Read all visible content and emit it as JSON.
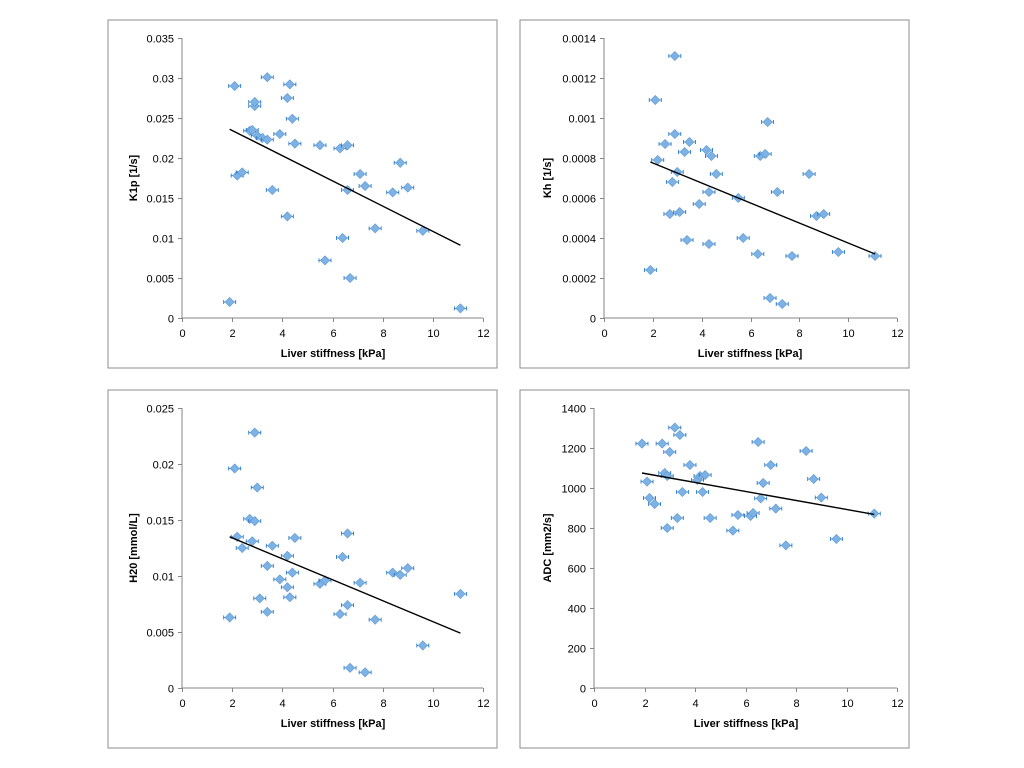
{
  "colors": {
    "marker": "#7eb2e4",
    "marker_edge": "#5a97d3",
    "error_bar": "#2d7bc6",
    "trendline": "#000000",
    "axis": "#868686",
    "frame": "#8c8c8c"
  },
  "chart_data": [
    {
      "type": "scatter",
      "xlabel": "Liver stiffness [kPa]",
      "ylabel": "K1p [1/s]",
      "xlim": [
        0,
        12
      ],
      "ylim": [
        0,
        0.035
      ],
      "xticks": [
        0,
        2,
        4,
        6,
        8,
        10,
        12
      ],
      "xtick_labels": [
        "0",
        "2",
        "4",
        "6",
        "8",
        "10",
        "12"
      ],
      "yticks": [
        0,
        0.005,
        0.01,
        0.015,
        0.02,
        0.025,
        0.03,
        0.035
      ],
      "ytick_labels": [
        "0",
        "0.005",
        "0.01",
        "0.015",
        "0.02",
        "0.025",
        "0.03",
        "0.035"
      ],
      "points": [
        {
          "x": 1.9,
          "y": 0.002
        },
        {
          "x": 2.1,
          "y": 0.029
        },
        {
          "x": 2.2,
          "y": 0.0178
        },
        {
          "x": 2.4,
          "y": 0.0182
        },
        {
          "x": 2.7,
          "y": 0.0234
        },
        {
          "x": 2.8,
          "y": 0.0235
        },
        {
          "x": 2.9,
          "y": 0.0265
        },
        {
          "x": 2.9,
          "y": 0.027
        },
        {
          "x": 3.0,
          "y": 0.0228
        },
        {
          "x": 3.2,
          "y": 0.0225
        },
        {
          "x": 3.4,
          "y": 0.0301
        },
        {
          "x": 3.4,
          "y": 0.0223
        },
        {
          "x": 3.6,
          "y": 0.016
        },
        {
          "x": 3.9,
          "y": 0.023
        },
        {
          "x": 4.2,
          "y": 0.0275
        },
        {
          "x": 4.2,
          "y": 0.0127
        },
        {
          "x": 4.3,
          "y": 0.0292
        },
        {
          "x": 4.4,
          "y": 0.0249
        },
        {
          "x": 4.5,
          "y": 0.0218
        },
        {
          "x": 5.5,
          "y": 0.0216
        },
        {
          "x": 5.7,
          "y": 0.0072
        },
        {
          "x": 6.3,
          "y": 0.0212
        },
        {
          "x": 6.4,
          "y": 0.01
        },
        {
          "x": 6.6,
          "y": 0.016
        },
        {
          "x": 6.6,
          "y": 0.0216
        },
        {
          "x": 6.7,
          "y": 0.005
        },
        {
          "x": 7.1,
          "y": 0.018
        },
        {
          "x": 7.3,
          "y": 0.0165
        },
        {
          "x": 7.7,
          "y": 0.0112
        },
        {
          "x": 8.4,
          "y": 0.0157
        },
        {
          "x": 8.7,
          "y": 0.0194
        },
        {
          "x": 9.0,
          "y": 0.0163
        },
        {
          "x": 9.6,
          "y": 0.0109
        },
        {
          "x": 11.1,
          "y": 0.0012
        }
      ],
      "trendline": {
        "x": [
          1.9,
          11.1
        ],
        "y": [
          0.0236,
          0.0091
        ]
      }
    },
    {
      "type": "scatter",
      "xlabel": "Liver stiffness [kPa]",
      "ylabel": "Kh [1/s]",
      "xlim": [
        0,
        12
      ],
      "ylim": [
        0,
        0.0014
      ],
      "xticks": [
        0,
        2,
        4,
        6,
        8,
        10,
        12
      ],
      "xtick_labels": [
        "0",
        "2",
        "4",
        "6",
        "8",
        "10",
        "12"
      ],
      "yticks": [
        0,
        0.0002,
        0.0004,
        0.0006,
        0.0008,
        0.001,
        0.0012,
        0.0014
      ],
      "ytick_labels": [
        "0",
        "0.0002",
        "0.0004",
        "0.0006",
        "0.0008",
        "0.001",
        "0.0012",
        "0.0014"
      ],
      "points": [
        {
          "x": 1.9,
          "y": 0.00024
        },
        {
          "x": 2.1,
          "y": 0.00109
        },
        {
          "x": 2.2,
          "y": 0.00079
        },
        {
          "x": 2.5,
          "y": 0.00087
        },
        {
          "x": 2.7,
          "y": 0.00052
        },
        {
          "x": 2.8,
          "y": 0.00068
        },
        {
          "x": 2.9,
          "y": 0.00092
        },
        {
          "x": 2.9,
          "y": 0.00131
        },
        {
          "x": 3.0,
          "y": 0.00073
        },
        {
          "x": 3.1,
          "y": 0.00053
        },
        {
          "x": 3.3,
          "y": 0.00083
        },
        {
          "x": 3.4,
          "y": 0.00039
        },
        {
          "x": 3.5,
          "y": 0.00088
        },
        {
          "x": 3.9,
          "y": 0.00057
        },
        {
          "x": 4.2,
          "y": 0.00084
        },
        {
          "x": 4.3,
          "y": 0.00063
        },
        {
          "x": 4.3,
          "y": 0.00037
        },
        {
          "x": 4.4,
          "y": 0.00081
        },
        {
          "x": 4.6,
          "y": 0.00072
        },
        {
          "x": 5.5,
          "y": 0.0006
        },
        {
          "x": 5.7,
          "y": 0.0004
        },
        {
          "x": 6.3,
          "y": 0.00032
        },
        {
          "x": 6.4,
          "y": 0.00081
        },
        {
          "x": 6.6,
          "y": 0.00082
        },
        {
          "x": 6.7,
          "y": 0.00098
        },
        {
          "x": 6.8,
          "y": 0.0001
        },
        {
          "x": 7.1,
          "y": 0.00063
        },
        {
          "x": 7.3,
          "y": 7e-05
        },
        {
          "x": 7.7,
          "y": 0.00031
        },
        {
          "x": 8.4,
          "y": 0.00072
        },
        {
          "x": 8.7,
          "y": 0.00051
        },
        {
          "x": 9.0,
          "y": 0.00052
        },
        {
          "x": 9.6,
          "y": 0.00033
        },
        {
          "x": 11.1,
          "y": 0.00031
        }
      ],
      "trendline": {
        "x": [
          1.9,
          11.1
        ],
        "y": [
          0.00078,
          0.00032
        ]
      }
    },
    {
      "type": "scatter",
      "xlabel": "Liver stiffness [kPa]",
      "ylabel": "H20 [mmol/L]",
      "xlim": [
        0,
        12
      ],
      "ylim": [
        0,
        0.025
      ],
      "xticks": [
        0,
        2,
        4,
        6,
        8,
        10,
        12
      ],
      "xtick_labels": [
        "0",
        "2",
        "4",
        "6",
        "8",
        "10",
        "12"
      ],
      "yticks": [
        0,
        0.005,
        0.01,
        0.015,
        0.02,
        0.025
      ],
      "ytick_labels": [
        "0",
        "0.005",
        "0.01",
        "0.015",
        "0.02",
        "0.025"
      ],
      "points": [
        {
          "x": 1.9,
          "y": 0.0063
        },
        {
          "x": 2.1,
          "y": 0.0196
        },
        {
          "x": 2.2,
          "y": 0.0135
        },
        {
          "x": 2.4,
          "y": 0.0125
        },
        {
          "x": 2.7,
          "y": 0.0151
        },
        {
          "x": 2.8,
          "y": 0.0131
        },
        {
          "x": 2.9,
          "y": 0.0149
        },
        {
          "x": 2.9,
          "y": 0.0228
        },
        {
          "x": 3.0,
          "y": 0.0179
        },
        {
          "x": 3.1,
          "y": 0.008
        },
        {
          "x": 3.4,
          "y": 0.0068
        },
        {
          "x": 3.4,
          "y": 0.0109
        },
        {
          "x": 3.6,
          "y": 0.0127
        },
        {
          "x": 3.9,
          "y": 0.0097
        },
        {
          "x": 4.2,
          "y": 0.0118
        },
        {
          "x": 4.2,
          "y": 0.009
        },
        {
          "x": 4.3,
          "y": 0.0081
        },
        {
          "x": 4.4,
          "y": 0.0103
        },
        {
          "x": 4.5,
          "y": 0.0134
        },
        {
          "x": 5.5,
          "y": 0.0093
        },
        {
          "x": 5.7,
          "y": 0.0096
        },
        {
          "x": 6.3,
          "y": 0.0066
        },
        {
          "x": 6.4,
          "y": 0.0117
        },
        {
          "x": 6.6,
          "y": 0.0074
        },
        {
          "x": 6.6,
          "y": 0.0138
        },
        {
          "x": 6.7,
          "y": 0.0018
        },
        {
          "x": 7.1,
          "y": 0.0094
        },
        {
          "x": 7.3,
          "y": 0.0014
        },
        {
          "x": 7.7,
          "y": 0.0061
        },
        {
          "x": 8.4,
          "y": 0.0103
        },
        {
          "x": 8.7,
          "y": 0.0101
        },
        {
          "x": 9.0,
          "y": 0.0107
        },
        {
          "x": 9.6,
          "y": 0.0038
        },
        {
          "x": 11.1,
          "y": 0.0084
        }
      ],
      "trendline": {
        "x": [
          1.9,
          11.1
        ],
        "y": [
          0.0135,
          0.0049
        ]
      }
    },
    {
      "type": "scatter",
      "xlabel": "Liver stiffness [kPa]",
      "ylabel": "ADC [mm2/s]",
      "xlim": [
        0,
        12
      ],
      "ylim": [
        0,
        1400
      ],
      "xticks": [
        0,
        2,
        4,
        6,
        8,
        10,
        12
      ],
      "xtick_labels": [
        "0",
        "2",
        "4",
        "6",
        "8",
        "10",
        "12"
      ],
      "yticks": [
        0,
        200,
        400,
        600,
        800,
        1000,
        1200,
        1400
      ],
      "ytick_labels": [
        "0",
        "200",
        "400",
        "600",
        "800",
        "1000",
        "1200",
        "1400"
      ],
      "points": [
        {
          "x": 1.9,
          "y": 1222
        },
        {
          "x": 2.1,
          "y": 1032
        },
        {
          "x": 2.2,
          "y": 950
        },
        {
          "x": 2.4,
          "y": 920
        },
        {
          "x": 2.7,
          "y": 1222
        },
        {
          "x": 2.8,
          "y": 1075
        },
        {
          "x": 2.9,
          "y": 800
        },
        {
          "x": 2.9,
          "y": 1060
        },
        {
          "x": 3.0,
          "y": 1180
        },
        {
          "x": 3.2,
          "y": 1302
        },
        {
          "x": 3.3,
          "y": 850
        },
        {
          "x": 3.4,
          "y": 1265
        },
        {
          "x": 3.5,
          "y": 980
        },
        {
          "x": 3.8,
          "y": 1115
        },
        {
          "x": 4.1,
          "y": 1040
        },
        {
          "x": 4.2,
          "y": 1060
        },
        {
          "x": 4.3,
          "y": 980
        },
        {
          "x": 4.4,
          "y": 1065
        },
        {
          "x": 4.6,
          "y": 850
        },
        {
          "x": 5.5,
          "y": 787
        },
        {
          "x": 5.7,
          "y": 865
        },
        {
          "x": 6.2,
          "y": 860
        },
        {
          "x": 6.3,
          "y": 875
        },
        {
          "x": 6.5,
          "y": 1230
        },
        {
          "x": 6.6,
          "y": 948
        },
        {
          "x": 6.7,
          "y": 1025
        },
        {
          "x": 7.0,
          "y": 1115
        },
        {
          "x": 7.2,
          "y": 897
        },
        {
          "x": 7.6,
          "y": 713
        },
        {
          "x": 8.4,
          "y": 1185
        },
        {
          "x": 8.7,
          "y": 1045
        },
        {
          "x": 9.0,
          "y": 952
        },
        {
          "x": 9.6,
          "y": 745
        },
        {
          "x": 11.1,
          "y": 872
        }
      ],
      "trendline": {
        "x": [
          1.9,
          11.1
        ],
        "y": [
          1075,
          868
        ]
      }
    }
  ]
}
